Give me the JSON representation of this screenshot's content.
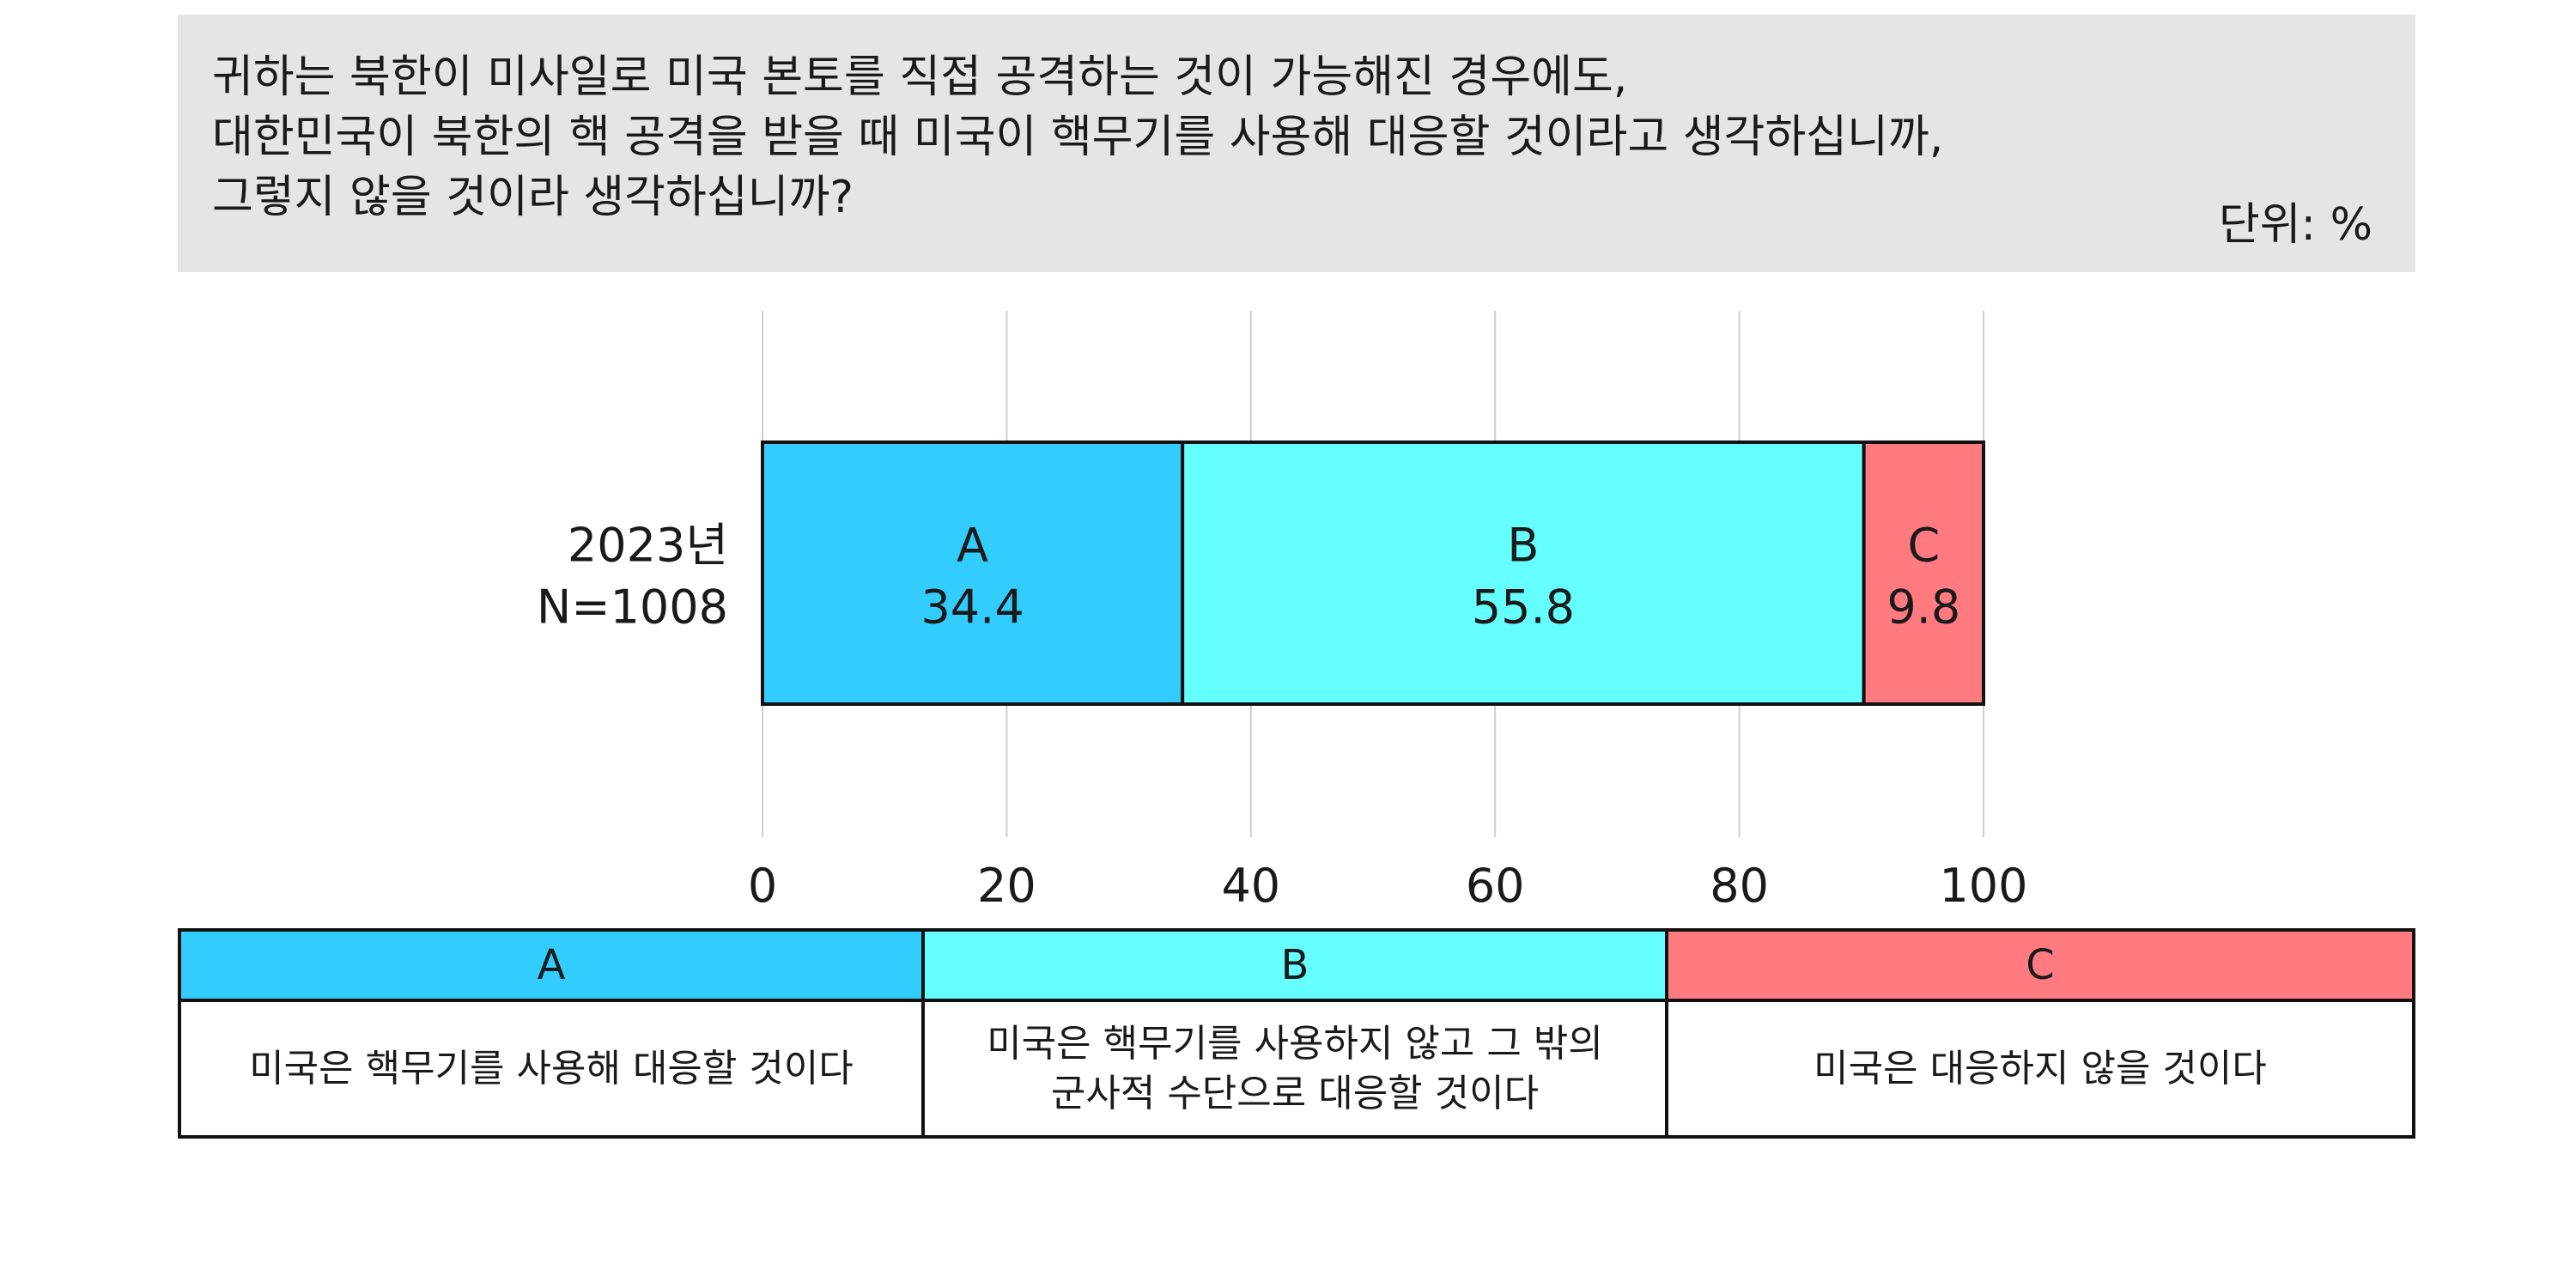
{
  "header": {
    "question_lines": [
      "귀하는 북한이 미사일로 미국 본토를 직접 공격하는 것이 가능해진 경우에도,",
      "대한민국이 북한의 핵 공격을 받을 때 미국이 핵무기를 사용해 대응할 것이라고 생각하십니까,",
      "그렇지 않을 것이라 생각하십니까?"
    ],
    "unit": "단위: %"
  },
  "chart_data": {
    "type": "bar",
    "stacked": true,
    "orientation": "horizontal",
    "categories": [
      "2023년\nN=1008"
    ],
    "category_lines": [
      "2023년",
      "N=1008"
    ],
    "series": [
      {
        "name": "A",
        "values": [
          34.4
        ],
        "color": "#33ccff"
      },
      {
        "name": "B",
        "values": [
          55.8
        ],
        "color": "#66ffff"
      },
      {
        "name": "C",
        "values": [
          9.8
        ],
        "color": "#ff7b7f"
      }
    ],
    "xlim": [
      0,
      100
    ],
    "xticks": [
      0,
      20,
      40,
      60,
      80,
      100
    ],
    "grid": true,
    "title": "",
    "xlabel": "",
    "ylabel": ""
  },
  "legend": [
    {
      "key": "A",
      "description": "미국은 핵무기를 사용해 대응할 것이다",
      "color": "#33ccff"
    },
    {
      "key": "B",
      "description": "미국은 핵무기를 사용하지 않고 그 밖의\n군사적 수단으로 대응할 것이다",
      "color": "#66ffff"
    },
    {
      "key": "C",
      "description": "미국은 대응하지 않을 것이다",
      "color": "#ff7b7f"
    }
  ]
}
